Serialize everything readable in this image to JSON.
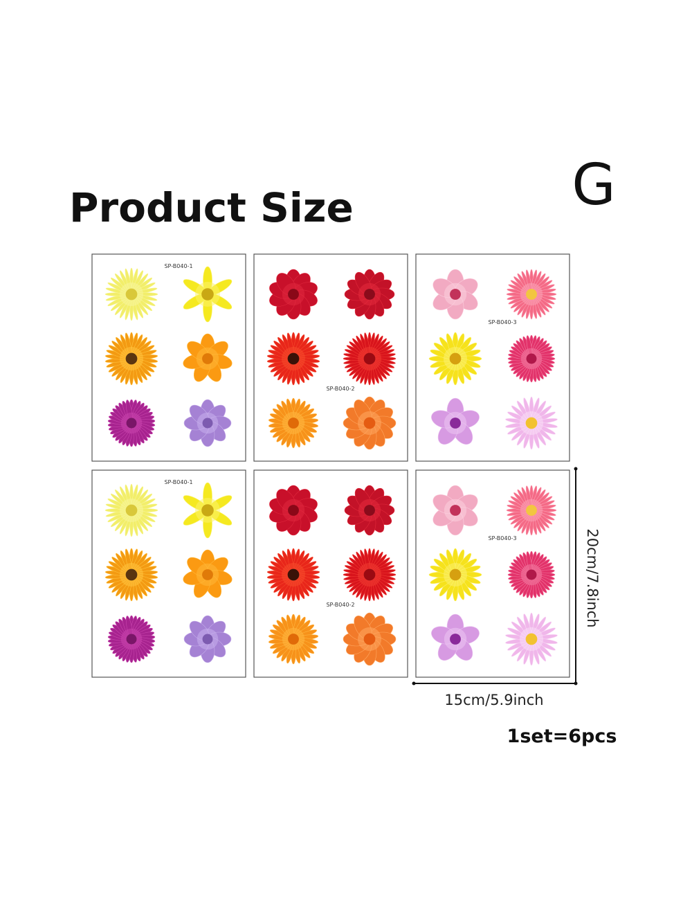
{
  "header": {
    "title": "Product Size",
    "variant": "G"
  },
  "sheets": [
    {
      "label": "SP-B040-1"
    },
    {
      "label": "SP-B040-2"
    },
    {
      "label": "SP-B040-3"
    },
    {
      "label": "SP-B040-1"
    },
    {
      "label": "SP-B040-2"
    },
    {
      "label": "SP-B040-3"
    }
  ],
  "dimensions": {
    "height": "20cm/7.8inch",
    "width": "15cm/5.9inch"
  },
  "set": "1set=6pcs"
}
